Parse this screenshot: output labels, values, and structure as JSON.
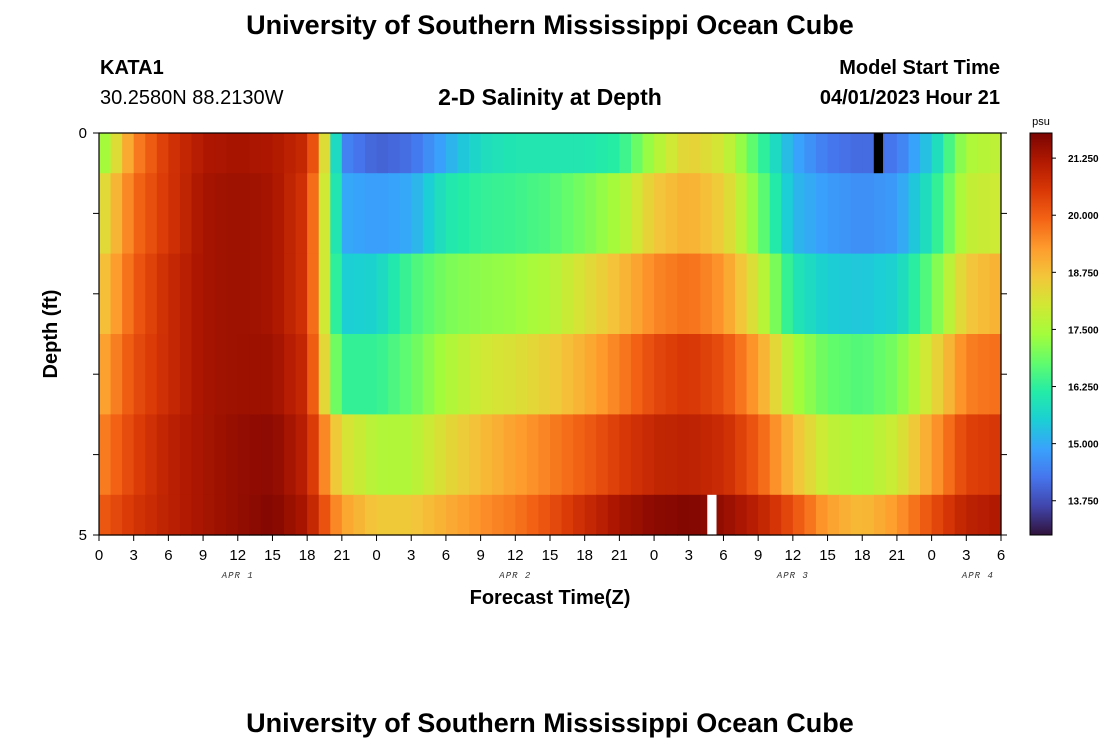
{
  "header": {
    "title": "University of Southern Mississippi Ocean Cube",
    "station": "KATA1",
    "coords": "30.2580N  88.2130W",
    "plot_title": "2-D Salinity at Depth",
    "model_start_label": "Model Start Time",
    "model_start_value": "04/01/2023 Hour 21"
  },
  "footer": {
    "title": "University of Southern Mississippi Ocean Cube"
  },
  "colors": {
    "stops": [
      "#30123b",
      "#4145ab",
      "#4675ed",
      "#39a2fc",
      "#1bcfd4",
      "#24eca6",
      "#61fc6c",
      "#a4fc3b",
      "#d1e834",
      "#f3c63a",
      "#fe9b2d",
      "#f36315",
      "#d93806",
      "#b11901",
      "#7a0402"
    ],
    "missing_white": "#ffffff",
    "missing_black": "#000000"
  },
  "chart_data": {
    "type": "heatmap",
    "title": "2-D Salinity at Depth",
    "xlabel": "Forecast Time(Z)",
    "ylabel": "Depth (ft)",
    "ylim": [
      0,
      5
    ],
    "y_tick_labels": [
      "0",
      "5"
    ],
    "x_tick_labels": [
      "0",
      "3",
      "6",
      "9",
      "12",
      "15",
      "18",
      "21",
      "0",
      "3",
      "6",
      "9",
      "12",
      "15",
      "18",
      "21",
      "0",
      "3",
      "6",
      "9",
      "12",
      "15",
      "18",
      "21",
      "0",
      "3",
      "6"
    ],
    "day_labels": [
      {
        "label": "APR 1",
        "hour": 12
      },
      {
        "label": "APR 2",
        "hour": 36
      },
      {
        "label": "APR 3",
        "hour": 60
      },
      {
        "label": "APR 4",
        "hour": 76
      }
    ],
    "x_range_hours": [
      0,
      78
    ],
    "colorbar": {
      "units": "psu",
      "min": 13.0,
      "max": 21.8,
      "tick_labels": [
        "21.250",
        "20.000",
        "18.750",
        "17.500",
        "16.250",
        "15.000",
        "13.750"
      ],
      "tick_values": [
        21.25,
        20.0,
        18.75,
        17.5,
        16.25,
        15.0,
        13.75
      ]
    },
    "depth_bands": [
      {
        "depth_range": "0-0.5",
        "hours": [
          0,
          3,
          6,
          9,
          12,
          15,
          18,
          19,
          20,
          21,
          24,
          27,
          30,
          33,
          36,
          39,
          42,
          45,
          48,
          51,
          54,
          57,
          60,
          63,
          66,
          69,
          72,
          75,
          78
        ],
        "salinity": [
          17.0,
          19.5,
          20.6,
          21.2,
          21.3,
          21.2,
          20.8,
          19.5,
          17.0,
          14.5,
          14.0,
          14.2,
          15.0,
          15.8,
          16.0,
          16.0,
          16.0,
          16.2,
          17.5,
          18.5,
          18.0,
          16.5,
          15.0,
          14.3,
          14.1,
          14.3,
          15.5,
          17.5,
          17.8
        ]
      },
      {
        "depth_range": "0.5-1.5",
        "hours": [
          0,
          3,
          6,
          9,
          12,
          15,
          18,
          19,
          20,
          21,
          24,
          27,
          30,
          33,
          36,
          39,
          42,
          45,
          48,
          51,
          54,
          57,
          60,
          63,
          66,
          69,
          72,
          75,
          78
        ],
        "salinity": [
          18.0,
          19.8,
          20.6,
          21.3,
          21.4,
          21.3,
          20.6,
          19.0,
          17.0,
          15.0,
          14.8,
          15.0,
          16.0,
          16.3,
          16.4,
          16.6,
          17.0,
          17.5,
          18.6,
          19.0,
          18.5,
          17.0,
          15.2,
          14.8,
          14.6,
          14.8,
          16.0,
          17.8,
          18.0
        ]
      },
      {
        "depth_range": "1.5-2.5",
        "hours": [
          0,
          3,
          6,
          9,
          12,
          15,
          18,
          19,
          20,
          21,
          24,
          27,
          30,
          33,
          36,
          39,
          42,
          45,
          48,
          51,
          54,
          57,
          60,
          63,
          66,
          69,
          72,
          75,
          78
        ],
        "salinity": [
          18.5,
          20.0,
          20.8,
          21.3,
          21.4,
          21.3,
          20.6,
          19.0,
          17.0,
          15.5,
          15.6,
          16.5,
          17.0,
          17.2,
          17.3,
          17.6,
          18.2,
          18.8,
          19.5,
          19.8,
          19.3,
          18.0,
          16.0,
          15.5,
          15.4,
          15.6,
          16.8,
          18.6,
          19.0
        ]
      },
      {
        "depth_range": "2.5-3.5",
        "hours": [
          0,
          3,
          6,
          9,
          12,
          15,
          18,
          19,
          20,
          21,
          24,
          27,
          30,
          33,
          36,
          39,
          42,
          45,
          48,
          51,
          54,
          57,
          60,
          63,
          66,
          69,
          72,
          75,
          78
        ],
        "salinity": [
          19.0,
          20.2,
          20.8,
          21.3,
          21.4,
          21.4,
          20.8,
          19.2,
          17.5,
          16.3,
          16.3,
          16.8,
          17.5,
          18.0,
          18.2,
          18.5,
          19.0,
          19.6,
          20.3,
          20.6,
          20.2,
          19.2,
          17.5,
          16.8,
          16.6,
          17.0,
          18.2,
          19.6,
          19.8
        ]
      },
      {
        "depth_range": "3.5-4.5",
        "hours": [
          0,
          3,
          6,
          9,
          12,
          15,
          18,
          19,
          20,
          21,
          24,
          27,
          30,
          33,
          36,
          39,
          42,
          45,
          48,
          51,
          54,
          57,
          60,
          63,
          66,
          69,
          72,
          75,
          78
        ],
        "salinity": [
          19.5,
          20.4,
          21.0,
          21.3,
          21.5,
          21.6,
          21.0,
          20.0,
          19.0,
          18.2,
          17.6,
          17.6,
          18.3,
          18.8,
          19.2,
          19.6,
          20.0,
          20.5,
          20.9,
          21.0,
          20.8,
          20.0,
          18.8,
          17.8,
          17.5,
          18.0,
          19.2,
          20.4,
          20.6
        ]
      },
      {
        "depth_range": "4.5-5",
        "hours": [
          0,
          3,
          6,
          9,
          12,
          15,
          18,
          19,
          20,
          21,
          24,
          27,
          30,
          33,
          36,
          39,
          42,
          45,
          48,
          51,
          54,
          57,
          60,
          63,
          66,
          69,
          72,
          75,
          78
        ],
        "salinity": [
          20.0,
          20.6,
          21.0,
          21.3,
          21.5,
          21.7,
          21.2,
          20.5,
          19.8,
          19.2,
          18.6,
          18.6,
          19.0,
          19.4,
          19.7,
          20.2,
          20.8,
          21.3,
          21.6,
          21.7,
          21.5,
          21.0,
          20.2,
          19.2,
          18.8,
          19.3,
          20.2,
          21.0,
          21.2
        ]
      }
    ],
    "missing_cells": [
      {
        "band": 0,
        "hour_start": 67,
        "hour_end": 67.8,
        "color": "black"
      },
      {
        "band": 5,
        "hour_start": 52.6,
        "hour_end": 53.4,
        "color": "white"
      }
    ]
  }
}
